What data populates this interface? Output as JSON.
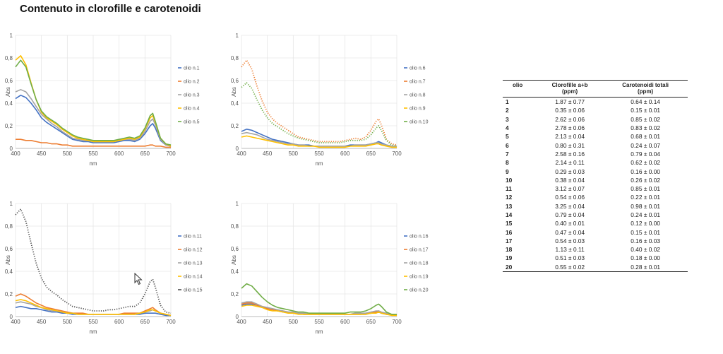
{
  "title": "Contenuto in clorofille e carotenoidi",
  "chart_data": [
    {
      "type": "line",
      "xlabel": "nm",
      "ylabel": "Abs",
      "xlim": [
        400,
        700
      ],
      "ylim": [
        0,
        1
      ],
      "x_ticks": [
        "400",
        "450",
        "500",
        "550",
        "600",
        "650",
        "700"
      ],
      "y_ticks": [
        "0",
        "0,2",
        "0,4",
        "0,6",
        "0,8",
        "1"
      ],
      "legend_position": "right",
      "x": [
        400,
        410,
        420,
        430,
        440,
        450,
        460,
        470,
        480,
        490,
        500,
        510,
        520,
        530,
        540,
        550,
        560,
        570,
        580,
        590,
        600,
        610,
        620,
        630,
        640,
        650,
        660,
        665,
        670,
        680,
        690,
        700
      ],
      "series": [
        {
          "name": "olio n.1",
          "color": "#4472c4",
          "style": "solid",
          "values": [
            0.44,
            0.47,
            0.45,
            0.4,
            0.34,
            0.27,
            0.23,
            0.2,
            0.17,
            0.14,
            0.11,
            0.08,
            0.07,
            0.06,
            0.06,
            0.05,
            0.05,
            0.05,
            0.05,
            0.05,
            0.06,
            0.07,
            0.07,
            0.06,
            0.08,
            0.13,
            0.2,
            0.22,
            0.18,
            0.07,
            0.03,
            0.02
          ]
        },
        {
          "name": "olio n.2",
          "color": "#ed7d31",
          "style": "solid",
          "values": [
            0.08,
            0.08,
            0.07,
            0.07,
            0.06,
            0.05,
            0.05,
            0.04,
            0.04,
            0.03,
            0.03,
            0.02,
            0.02,
            0.02,
            0.02,
            0.02,
            0.02,
            0.02,
            0.02,
            0.02,
            0.02,
            0.02,
            0.02,
            0.02,
            0.02,
            0.02,
            0.03,
            0.03,
            0.02,
            0.02,
            0.01,
            0.01
          ]
        },
        {
          "name": "olio n.3",
          "color": "#a5a5a5",
          "style": "solid",
          "values": [
            0.5,
            0.52,
            0.5,
            0.44,
            0.37,
            0.3,
            0.26,
            0.22,
            0.19,
            0.15,
            0.12,
            0.09,
            0.08,
            0.07,
            0.07,
            0.06,
            0.06,
            0.06,
            0.06,
            0.06,
            0.07,
            0.08,
            0.08,
            0.07,
            0.09,
            0.15,
            0.24,
            0.26,
            0.21,
            0.08,
            0.03,
            0.02
          ]
        },
        {
          "name": "olio n.4",
          "color": "#ffc000",
          "style": "solid",
          "values": [
            0.78,
            0.82,
            0.74,
            0.58,
            0.43,
            0.32,
            0.27,
            0.24,
            0.21,
            0.17,
            0.14,
            0.11,
            0.09,
            0.08,
            0.07,
            0.06,
            0.06,
            0.06,
            0.06,
            0.06,
            0.07,
            0.08,
            0.09,
            0.08,
            0.1,
            0.17,
            0.27,
            0.29,
            0.23,
            0.09,
            0.04,
            0.02
          ]
        },
        {
          "name": "olio n.5",
          "color": "#70ad47",
          "style": "solid",
          "values": [
            0.72,
            0.78,
            0.72,
            0.57,
            0.43,
            0.33,
            0.28,
            0.25,
            0.22,
            0.18,
            0.15,
            0.12,
            0.1,
            0.09,
            0.08,
            0.07,
            0.07,
            0.07,
            0.07,
            0.07,
            0.08,
            0.09,
            0.1,
            0.09,
            0.11,
            0.18,
            0.29,
            0.31,
            0.24,
            0.09,
            0.04,
            0.03
          ]
        }
      ]
    },
    {
      "type": "line",
      "xlabel": "nm",
      "ylabel": "Abs",
      "xlim": [
        400,
        700
      ],
      "ylim": [
        0,
        1
      ],
      "x_ticks": [
        "400",
        "450",
        "500",
        "550",
        "600",
        "650",
        "700"
      ],
      "y_ticks": [
        "0",
        "0,2",
        "0,4",
        "0,6",
        "0,8",
        "1"
      ],
      "legend_position": "right",
      "x": [
        400,
        410,
        420,
        430,
        440,
        450,
        460,
        470,
        480,
        490,
        500,
        510,
        520,
        530,
        540,
        550,
        560,
        570,
        580,
        590,
        600,
        610,
        620,
        630,
        640,
        650,
        660,
        665,
        670,
        680,
        690,
        700
      ],
      "series": [
        {
          "name": "olio n.6",
          "color": "#4472c4",
          "style": "solid",
          "values": [
            0.15,
            0.17,
            0.16,
            0.14,
            0.12,
            0.1,
            0.08,
            0.07,
            0.06,
            0.05,
            0.04,
            0.03,
            0.03,
            0.03,
            0.02,
            0.02,
            0.02,
            0.02,
            0.02,
            0.02,
            0.02,
            0.03,
            0.03,
            0.03,
            0.03,
            0.04,
            0.05,
            0.06,
            0.05,
            0.03,
            0.02,
            0.02
          ]
        },
        {
          "name": "olio n.7",
          "color": "#ed7d31",
          "style": "dotted",
          "values": [
            0.72,
            0.78,
            0.7,
            0.55,
            0.42,
            0.32,
            0.26,
            0.22,
            0.19,
            0.16,
            0.13,
            0.1,
            0.09,
            0.08,
            0.07,
            0.06,
            0.06,
            0.06,
            0.06,
            0.06,
            0.07,
            0.08,
            0.09,
            0.08,
            0.1,
            0.16,
            0.24,
            0.26,
            0.21,
            0.08,
            0.04,
            0.03
          ]
        },
        {
          "name": "olio n.8",
          "color": "#a5a5a5",
          "style": "solid",
          "values": [
            0.13,
            0.14,
            0.13,
            0.12,
            0.1,
            0.08,
            0.07,
            0.06,
            0.05,
            0.04,
            0.04,
            0.03,
            0.03,
            0.02,
            0.02,
            0.02,
            0.02,
            0.02,
            0.02,
            0.02,
            0.02,
            0.02,
            0.03,
            0.03,
            0.03,
            0.04,
            0.05,
            0.05,
            0.04,
            0.03,
            0.02,
            0.02
          ]
        },
        {
          "name": "olio n.9",
          "color": "#ffc000",
          "style": "solid",
          "values": [
            0.1,
            0.11,
            0.1,
            0.09,
            0.08,
            0.07,
            0.06,
            0.05,
            0.04,
            0.03,
            0.03,
            0.02,
            0.02,
            0.02,
            0.02,
            0.01,
            0.01,
            0.01,
            0.01,
            0.01,
            0.01,
            0.02,
            0.02,
            0.02,
            0.02,
            0.03,
            0.04,
            0.04,
            0.03,
            0.02,
            0.01,
            0.01
          ]
        },
        {
          "name": "olio n.10",
          "color": "#70ad47",
          "style": "dotted",
          "values": [
            0.54,
            0.58,
            0.53,
            0.43,
            0.34,
            0.27,
            0.22,
            0.19,
            0.16,
            0.13,
            0.11,
            0.09,
            0.08,
            0.07,
            0.06,
            0.05,
            0.05,
            0.05,
            0.05,
            0.05,
            0.06,
            0.07,
            0.07,
            0.07,
            0.08,
            0.12,
            0.18,
            0.2,
            0.16,
            0.07,
            0.03,
            0.02
          ]
        }
      ]
    },
    {
      "type": "line",
      "xlabel": "nm",
      "ylabel": "Abs",
      "xlim": [
        400,
        700
      ],
      "ylim": [
        0,
        1
      ],
      "x_ticks": [
        "400",
        "450",
        "500",
        "550",
        "600",
        "650",
        "700"
      ],
      "y_ticks": [
        "0",
        "0,2",
        "0,4",
        "0,6",
        "0,8",
        "1"
      ],
      "legend_position": "right",
      "x": [
        400,
        410,
        420,
        430,
        440,
        450,
        460,
        470,
        480,
        490,
        500,
        510,
        520,
        530,
        540,
        550,
        560,
        570,
        580,
        590,
        600,
        610,
        620,
        630,
        640,
        650,
        660,
        665,
        670,
        680,
        690,
        700
      ],
      "series": [
        {
          "name": "olio n.11",
          "color": "#4472c4",
          "style": "solid",
          "values": [
            0.08,
            0.09,
            0.08,
            0.07,
            0.07,
            0.06,
            0.05,
            0.04,
            0.04,
            0.03,
            0.03,
            0.02,
            0.02,
            0.02,
            0.02,
            0.02,
            0.02,
            0.02,
            0.02,
            0.02,
            0.02,
            0.02,
            0.02,
            0.02,
            0.02,
            0.03,
            0.03,
            0.03,
            0.03,
            0.02,
            0.01,
            0.01
          ]
        },
        {
          "name": "olio n.12",
          "color": "#ed7d31",
          "style": "solid",
          "values": [
            0.18,
            0.2,
            0.18,
            0.15,
            0.12,
            0.1,
            0.08,
            0.07,
            0.06,
            0.05,
            0.04,
            0.03,
            0.03,
            0.03,
            0.02,
            0.02,
            0.02,
            0.02,
            0.02,
            0.02,
            0.02,
            0.03,
            0.03,
            0.03,
            0.03,
            0.05,
            0.07,
            0.08,
            0.06,
            0.03,
            0.02,
            0.01
          ]
        },
        {
          "name": "olio n.13",
          "color": "#a5a5a5",
          "style": "solid",
          "values": [
            0.12,
            0.13,
            0.12,
            0.11,
            0.09,
            0.08,
            0.06,
            0.05,
            0.05,
            0.04,
            0.03,
            0.03,
            0.02,
            0.02,
            0.02,
            0.02,
            0.02,
            0.02,
            0.02,
            0.02,
            0.02,
            0.02,
            0.02,
            0.02,
            0.03,
            0.04,
            0.05,
            0.06,
            0.05,
            0.03,
            0.02,
            0.01
          ]
        },
        {
          "name": "olio n.14",
          "color": "#ffc000",
          "style": "solid",
          "values": [
            0.14,
            0.15,
            0.14,
            0.12,
            0.1,
            0.08,
            0.07,
            0.06,
            0.05,
            0.04,
            0.03,
            0.03,
            0.02,
            0.02,
            0.02,
            0.02,
            0.02,
            0.02,
            0.02,
            0.02,
            0.02,
            0.02,
            0.02,
            0.02,
            0.03,
            0.04,
            0.06,
            0.06,
            0.05,
            0.03,
            0.02,
            0.01
          ]
        },
        {
          "name": "olio n.15",
          "color": "#4d4d4d",
          "style": "dotted",
          "values": [
            0.9,
            0.95,
            0.84,
            0.65,
            0.47,
            0.34,
            0.26,
            0.22,
            0.19,
            0.15,
            0.12,
            0.09,
            0.08,
            0.07,
            0.06,
            0.05,
            0.05,
            0.05,
            0.06,
            0.06,
            0.07,
            0.08,
            0.09,
            0.09,
            0.12,
            0.2,
            0.31,
            0.33,
            0.26,
            0.1,
            0.04,
            0.03
          ]
        }
      ]
    },
    {
      "type": "line",
      "xlabel": "nm",
      "ylabel": "Abs",
      "xlim": [
        400,
        700
      ],
      "ylim": [
        0,
        1
      ],
      "x_ticks": [
        "400",
        "450",
        "500",
        "550",
        "600",
        "650",
        "700"
      ],
      "y_ticks": [
        "0",
        "0,2",
        "0,4",
        "0,6",
        "0,8",
        "1"
      ],
      "legend_position": "right",
      "x": [
        400,
        410,
        420,
        430,
        440,
        450,
        460,
        470,
        480,
        490,
        500,
        510,
        520,
        530,
        540,
        550,
        560,
        570,
        580,
        590,
        600,
        610,
        620,
        630,
        640,
        650,
        660,
        665,
        670,
        680,
        690,
        700
      ],
      "series": [
        {
          "name": "olio n.16",
          "color": "#4472c4",
          "style": "solid",
          "values": [
            0.1,
            0.11,
            0.11,
            0.1,
            0.08,
            0.07,
            0.06,
            0.05,
            0.04,
            0.04,
            0.03,
            0.03,
            0.02,
            0.02,
            0.02,
            0.02,
            0.02,
            0.02,
            0.02,
            0.02,
            0.02,
            0.02,
            0.02,
            0.02,
            0.02,
            0.03,
            0.04,
            0.04,
            0.03,
            0.02,
            0.02,
            0.01
          ]
        },
        {
          "name": "olio n.17",
          "color": "#ed7d31",
          "style": "solid",
          "values": [
            0.11,
            0.12,
            0.12,
            0.1,
            0.09,
            0.07,
            0.06,
            0.05,
            0.05,
            0.04,
            0.03,
            0.03,
            0.02,
            0.02,
            0.02,
            0.02,
            0.02,
            0.02,
            0.02,
            0.02,
            0.02,
            0.02,
            0.02,
            0.02,
            0.03,
            0.03,
            0.04,
            0.05,
            0.04,
            0.02,
            0.02,
            0.01
          ]
        },
        {
          "name": "olio n.18",
          "color": "#a5a5a5",
          "style": "solid",
          "values": [
            0.12,
            0.13,
            0.13,
            0.11,
            0.09,
            0.08,
            0.07,
            0.06,
            0.05,
            0.04,
            0.04,
            0.03,
            0.03,
            0.02,
            0.02,
            0.02,
            0.02,
            0.02,
            0.02,
            0.02,
            0.02,
            0.02,
            0.03,
            0.03,
            0.03,
            0.04,
            0.05,
            0.05,
            0.04,
            0.03,
            0.02,
            0.01
          ]
        },
        {
          "name": "olio n.19",
          "color": "#ffc000",
          "style": "solid",
          "values": [
            0.09,
            0.1,
            0.1,
            0.09,
            0.08,
            0.06,
            0.05,
            0.05,
            0.04,
            0.03,
            0.03,
            0.02,
            0.02,
            0.02,
            0.02,
            0.02,
            0.02,
            0.02,
            0.02,
            0.02,
            0.02,
            0.02,
            0.02,
            0.02,
            0.02,
            0.03,
            0.03,
            0.04,
            0.03,
            0.02,
            0.01,
            0.01
          ]
        },
        {
          "name": "olio n.20",
          "color": "#70ad47",
          "style": "solid",
          "values": [
            0.25,
            0.29,
            0.27,
            0.22,
            0.17,
            0.13,
            0.1,
            0.08,
            0.07,
            0.06,
            0.05,
            0.04,
            0.04,
            0.03,
            0.03,
            0.03,
            0.03,
            0.03,
            0.03,
            0.03,
            0.03,
            0.04,
            0.04,
            0.04,
            0.05,
            0.07,
            0.1,
            0.11,
            0.09,
            0.04,
            0.02,
            0.02
          ]
        }
      ]
    }
  ],
  "table": {
    "headers": [
      "olio",
      "Clorofille a+b\n(ppm)",
      "Carotenoidi totali\n(ppm)"
    ],
    "rows": [
      [
        "1",
        "1.87 ± 0.77",
        "0.64 ± 0.14"
      ],
      [
        "2",
        "0.35 ± 0.06",
        "0.15 ± 0.01"
      ],
      [
        "3",
        "2.62 ± 0.06",
        "0.85 ± 0.02"
      ],
      [
        "4",
        "2.78 ± 0.06",
        "0.83 ± 0.02"
      ],
      [
        "5",
        "2.13 ± 0.04",
        "0.68 ± 0.01"
      ],
      [
        "6",
        "0.80 ± 0.31",
        "0.24 ± 0.07"
      ],
      [
        "7",
        "2.58 ± 0.16",
        "0.79 ± 0.04"
      ],
      [
        "8",
        "2.14 ± 0.11",
        "0.62 ± 0.02"
      ],
      [
        "9",
        "0.29 ± 0.03",
        "0.16 ± 0.00"
      ],
      [
        "10",
        "0.38 ± 0.04",
        "0.26 ± 0.02"
      ],
      [
        "11",
        "3.12 ± 0.07",
        "0.85 ± 0.01"
      ],
      [
        "12",
        "0.54 ± 0.06",
        "0.22 ± 0.01"
      ],
      [
        "13",
        "3.25 ± 0.04",
        "0.98 ± 0.01"
      ],
      [
        "14",
        "0.79 ± 0.04",
        "0.24 ± 0.01"
      ],
      [
        "15",
        "0.40 ± 0.01",
        "0.12 ± 0.00"
      ],
      [
        "16",
        "0.47 ± 0.04",
        "0.15 ± 0.01"
      ],
      [
        "17",
        "0.54 ± 0.03",
        "0.16 ± 0.03"
      ],
      [
        "18",
        "1.13 ± 0.11",
        "0.40 ± 0.02"
      ],
      [
        "19",
        "0.51 ± 0.03",
        "0.18 ± 0.00"
      ],
      [
        "20",
        "0.55 ± 0.02",
        "0.28 ± 0.01"
      ]
    ]
  }
}
